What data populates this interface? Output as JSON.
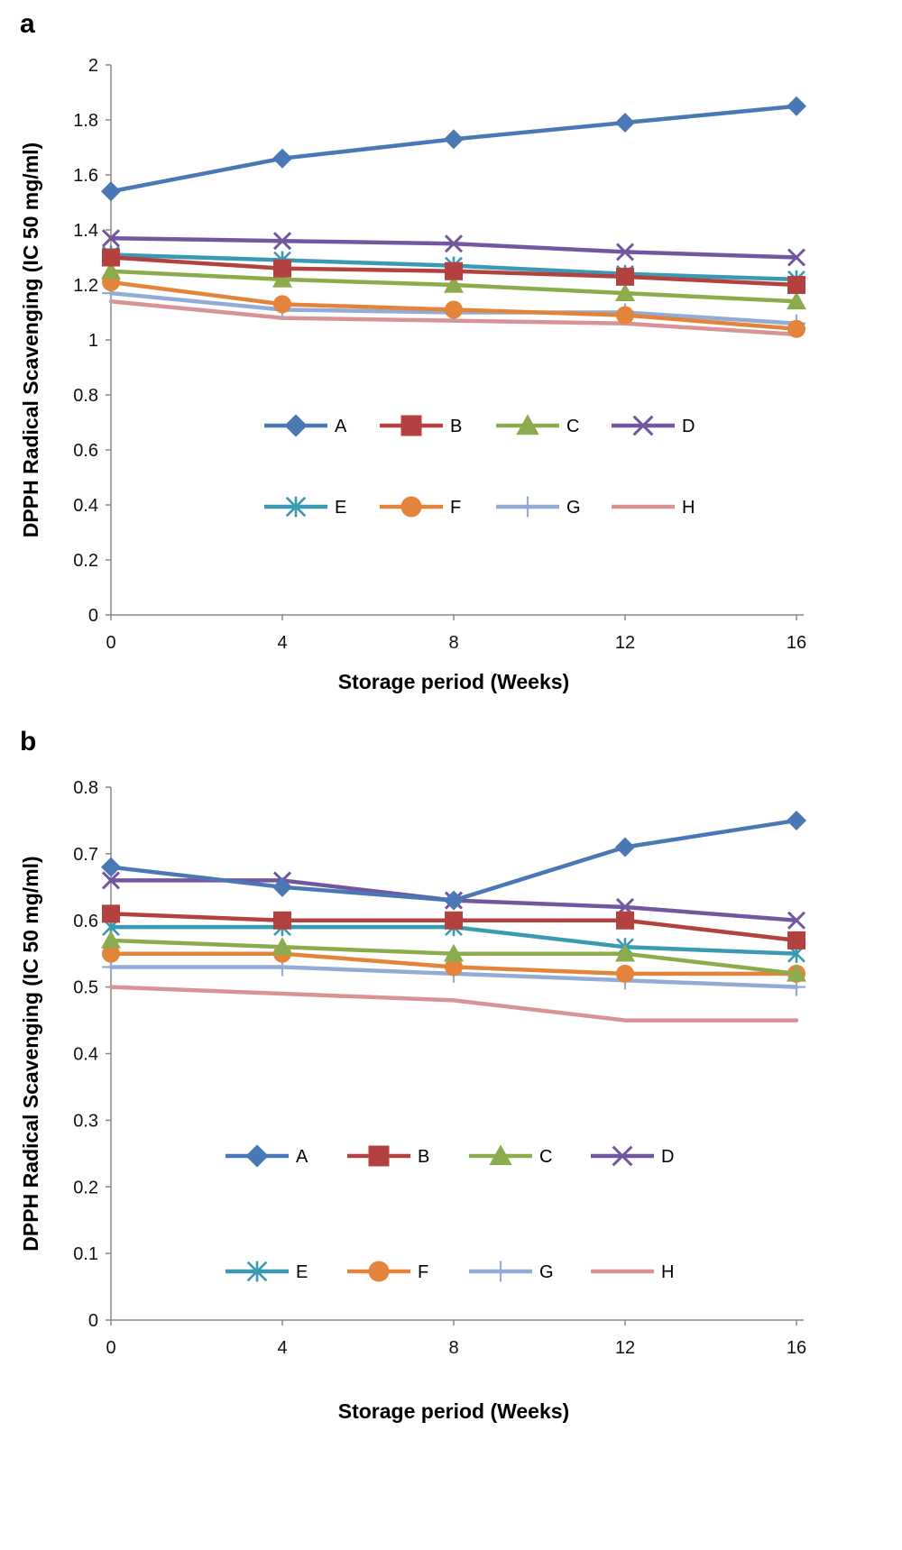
{
  "chart_data": [
    {
      "panel": "a",
      "type": "line",
      "x": [
        0,
        4,
        8,
        12,
        16
      ],
      "xlabel": "Storage period (Weeks)",
      "ylabel": "DPPH Radical Scavenging (IC 50 mg/ml)",
      "ylim": [
        0,
        2
      ],
      "ytick_step": 0.2,
      "yticks": [
        "0",
        "0.2",
        "0.4",
        "0.6",
        "0.8",
        "1",
        "1.2",
        "1.4",
        "1.6",
        "1.8",
        "2"
      ],
      "xticks": [
        "0",
        "4",
        "8",
        "12",
        "16"
      ],
      "legend_position": "center",
      "grid": false,
      "series": [
        {
          "name": "A",
          "values": [
            1.54,
            1.66,
            1.73,
            1.79,
            1.85
          ]
        },
        {
          "name": "B",
          "values": [
            1.3,
            1.26,
            1.25,
            1.23,
            1.2
          ]
        },
        {
          "name": "C",
          "values": [
            1.25,
            1.22,
            1.2,
            1.17,
            1.14
          ]
        },
        {
          "name": "D",
          "values": [
            1.37,
            1.36,
            1.35,
            1.32,
            1.3
          ]
        },
        {
          "name": "E",
          "values": [
            1.31,
            1.29,
            1.27,
            1.24,
            1.22
          ]
        },
        {
          "name": "F",
          "values": [
            1.21,
            1.13,
            1.11,
            1.09,
            1.04
          ]
        },
        {
          "name": "G",
          "values": [
            1.17,
            1.11,
            1.1,
            1.1,
            1.06
          ]
        },
        {
          "name": "H",
          "values": [
            1.14,
            1.08,
            1.07,
            1.06,
            1.02
          ]
        }
      ]
    },
    {
      "panel": "b",
      "type": "line",
      "x": [
        0,
        4,
        8,
        12,
        16
      ],
      "xlabel": "Storage period (Weeks)",
      "ylabel": "DPPH Radical Scavenging (IC 50 mg/ml)",
      "ylim": [
        0,
        0.8
      ],
      "ytick_step": 0.1,
      "yticks": [
        "0",
        "0.1",
        "0.2",
        "0.3",
        "0.4",
        "0.5",
        "0.6",
        "0.7",
        "0.8"
      ],
      "xticks": [
        "0",
        "4",
        "8",
        "12",
        "16"
      ],
      "legend_position": "bottom",
      "grid": false,
      "series": [
        {
          "name": "A",
          "values": [
            0.68,
            0.65,
            0.63,
            0.71,
            0.75
          ]
        },
        {
          "name": "B",
          "values": [
            0.61,
            0.6,
            0.6,
            0.6,
            0.57
          ]
        },
        {
          "name": "C",
          "values": [
            0.57,
            0.56,
            0.55,
            0.55,
            0.52
          ]
        },
        {
          "name": "D",
          "values": [
            0.66,
            0.66,
            0.63,
            0.62,
            0.6
          ]
        },
        {
          "name": "E",
          "values": [
            0.59,
            0.59,
            0.59,
            0.56,
            0.55
          ]
        },
        {
          "name": "F",
          "values": [
            0.55,
            0.55,
            0.53,
            0.52,
            0.52
          ]
        },
        {
          "name": "G",
          "values": [
            0.53,
            0.53,
            0.52,
            0.51,
            0.5
          ]
        },
        {
          "name": "H",
          "values": [
            0.5,
            0.49,
            0.48,
            0.45,
            0.45
          ]
        }
      ]
    }
  ],
  "series_styles": [
    {
      "name": "A",
      "color": "#4a78b4",
      "marker": "diamond-icon"
    },
    {
      "name": "B",
      "color": "#b3413f",
      "marker": "square-icon"
    },
    {
      "name": "C",
      "color": "#8cab4c",
      "marker": "triangle-icon"
    },
    {
      "name": "D",
      "color": "#7257a0",
      "marker": "x-icon"
    },
    {
      "name": "E",
      "color": "#3a9ab3",
      "marker": "asterisk-icon"
    },
    {
      "name": "F",
      "color": "#e4843a",
      "marker": "circle-icon"
    },
    {
      "name": "G",
      "color": "#94abd6",
      "marker": "plus-icon"
    },
    {
      "name": "H",
      "color": "#d89394",
      "marker": "none"
    }
  ],
  "axis_color": "#888888"
}
